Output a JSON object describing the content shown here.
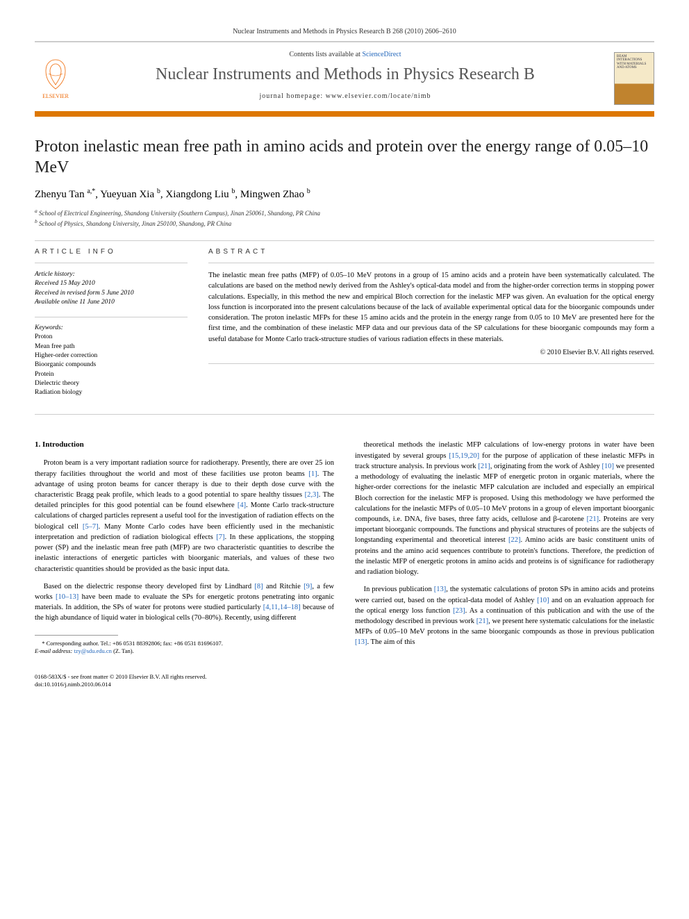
{
  "header": {
    "journal_ref": "Nuclear Instruments and Methods in Physics Research B 268 (2010) 2606–2610",
    "contents_prefix": "Contents lists available at ",
    "contents_link": "ScienceDirect",
    "journal_name": "Nuclear Instruments and Methods in Physics Research B",
    "homepage_label": "journal homepage: ",
    "homepage_url": "www.elsevier.com/locate/nimb",
    "publisher": "ELSEVIER",
    "cover_text": "BEAM INTERACTIONS WITH MATERIALS AND ATOMS"
  },
  "article": {
    "title": "Proton inelastic mean free path in amino acids and protein over the energy range of 0.05–10 MeV",
    "authors_html": "Zhenyu Tan <sup>a,*</sup>, Yueyuan Xia <sup>b</sup>, Xiangdong Liu <sup>b</sup>, Mingwen Zhao <sup>b</sup>",
    "authors": [
      {
        "name": "Zhenyu Tan",
        "sup": "a,*"
      },
      {
        "name": "Yueyuan Xia",
        "sup": "b"
      },
      {
        "name": "Xiangdong Liu",
        "sup": "b"
      },
      {
        "name": "Mingwen Zhao",
        "sup": "b"
      }
    ],
    "affiliations": [
      {
        "sup": "a",
        "text": "School of Electrical Engineering, Shandong University (Southern Campus), Jinan 250061, Shandong, PR China"
      },
      {
        "sup": "b",
        "text": "School of Physics, Shandong University, Jinan 250100, Shandong, PR China"
      }
    ]
  },
  "info": {
    "heading": "ARTICLE INFO",
    "history_label": "Article history:",
    "history": [
      "Received 15 May 2010",
      "Received in revised form 5 June 2010",
      "Available online 11 June 2010"
    ],
    "keywords_label": "Keywords:",
    "keywords": [
      "Proton",
      "Mean free path",
      "Higher-order correction",
      "Bioorganic compounds",
      "Protein",
      "Dielectric theory",
      "Radiation biology"
    ]
  },
  "abstract": {
    "heading": "ABSTRACT",
    "text": "The inelastic mean free paths (MFP) of 0.05–10 MeV protons in a group of 15 amino acids and a protein have been systematically calculated. The calculations are based on the method newly derived from the Ashley's optical-data model and from the higher-order correction terms in stopping power calculations. Especially, in this method the new and empirical Bloch correction for the inelastic MFP was given. An evaluation for the optical energy loss function is incorporated into the present calculations because of the lack of available experimental optical data for the bioorganic compounds under consideration. The proton inelastic MFPs for these 15 amino acids and the protein in the energy range from 0.05 to 10 MeV are presented here for the first time, and the combination of these inelastic MFP data and our previous data of the SP calculations for these bioorganic compounds may form a useful database for Monte Carlo track-structure studies of various radiation effects in these materials.",
    "copyright": "© 2010 Elsevier B.V. All rights reserved."
  },
  "body": {
    "section_number": "1.",
    "section_title": "Introduction",
    "col1": [
      "Proton beam is a very important radiation source for radiotherapy. Presently, there are over 25 ion therapy facilities throughout the world and most of these facilities use proton beams [1]. The advantage of using proton beams for cancer therapy is due to their depth dose curve with the characteristic Bragg peak profile, which leads to a good potential to spare healthy tissues [2,3]. The detailed principles for this good potential can be found elsewhere [4]. Monte Carlo track-structure calculations of charged particles represent a useful tool for the investigation of radiation effects on the biological cell [5–7]. Many Monte Carlo codes have been efficiently used in the mechanistic interpretation and prediction of radiation biological effects [7]. In these applications, the stopping power (SP) and the inelastic mean free path (MFP) are two characteristic quantities to describe the inelastic interactions of energetic particles with bioorganic materials, and values of these two characteristic quantities should be provided as the basic input data.",
      "Based on the dielectric response theory developed first by Lindhard [8] and Ritchie [9], a few works [10–13] have been made to evaluate the SPs for energetic protons penetrating into organic materials. In addition, the SPs of water for protons were studied particularly [4,11,14–18] because of the high abundance of liquid water in biological cells (70–80%). Recently, using different"
    ],
    "col2": [
      "theoretical methods the inelastic MFP calculations of low-energy protons in water have been investigated by several groups [15,19,20] for the purpose of application of these inelastic MFPs in track structure analysis. In previous work [21], originating from the work of Ashley [10] we presented a methodology of evaluating the inelastic MFP of energetic proton in organic materials, where the higher-order corrections for the inelastic MFP calculation are included and especially an empirical Bloch correction for the inelastic MFP is proposed. Using this methodology we have performed the calculations for the inelastic MFPs of 0.05–10 MeV protons in a group of eleven important bioorganic compounds, i.e. DNA, five bases, three fatty acids, cellulose and β-carotene [21]. Proteins are very important bioorganic compounds. The functions and physical structures of proteins are the subjects of longstanding experimental and theoretical interest [22]. Amino acids are basic constituent units of proteins and the amino acid sequences contribute to protein's functions. Therefore, the prediction of the inelastic MFP of energetic protons in amino acids and proteins is of significance for radiotherapy and radiation biology.",
      "In previous publication [13], the systematic calculations of proton SPs in amino acids and proteins were carried out, based on the optical-data model of Ashley [10] and on an evaluation approach for the optical energy loss function [23]. As a continuation of this publication and with the use of the methodology described in previous work [21], we present here systematic calculations for the inelastic MFPs of 0.05–10 MeV protons in the same bioorganic compounds as those in previous publication [13]. The aim of this"
    ]
  },
  "footnote": {
    "marker": "*",
    "text": "Corresponding author. Tel.: +86 0531 88392806; fax: +86 0531 81696107.",
    "email_label": "E-mail address:",
    "email": "tzy@sdu.edu.cn",
    "email_suffix": "(Z. Tan)."
  },
  "footer": {
    "line1": "0168-583X/$ - see front matter © 2010 Elsevier B.V. All rights reserved.",
    "line2": "doi:10.1016/j.nimb.2010.06.014"
  },
  "colors": {
    "accent_orange": "#dd7700",
    "link_blue": "#2266bb",
    "journal_grey": "#555555",
    "border_light": "#cccccc"
  }
}
